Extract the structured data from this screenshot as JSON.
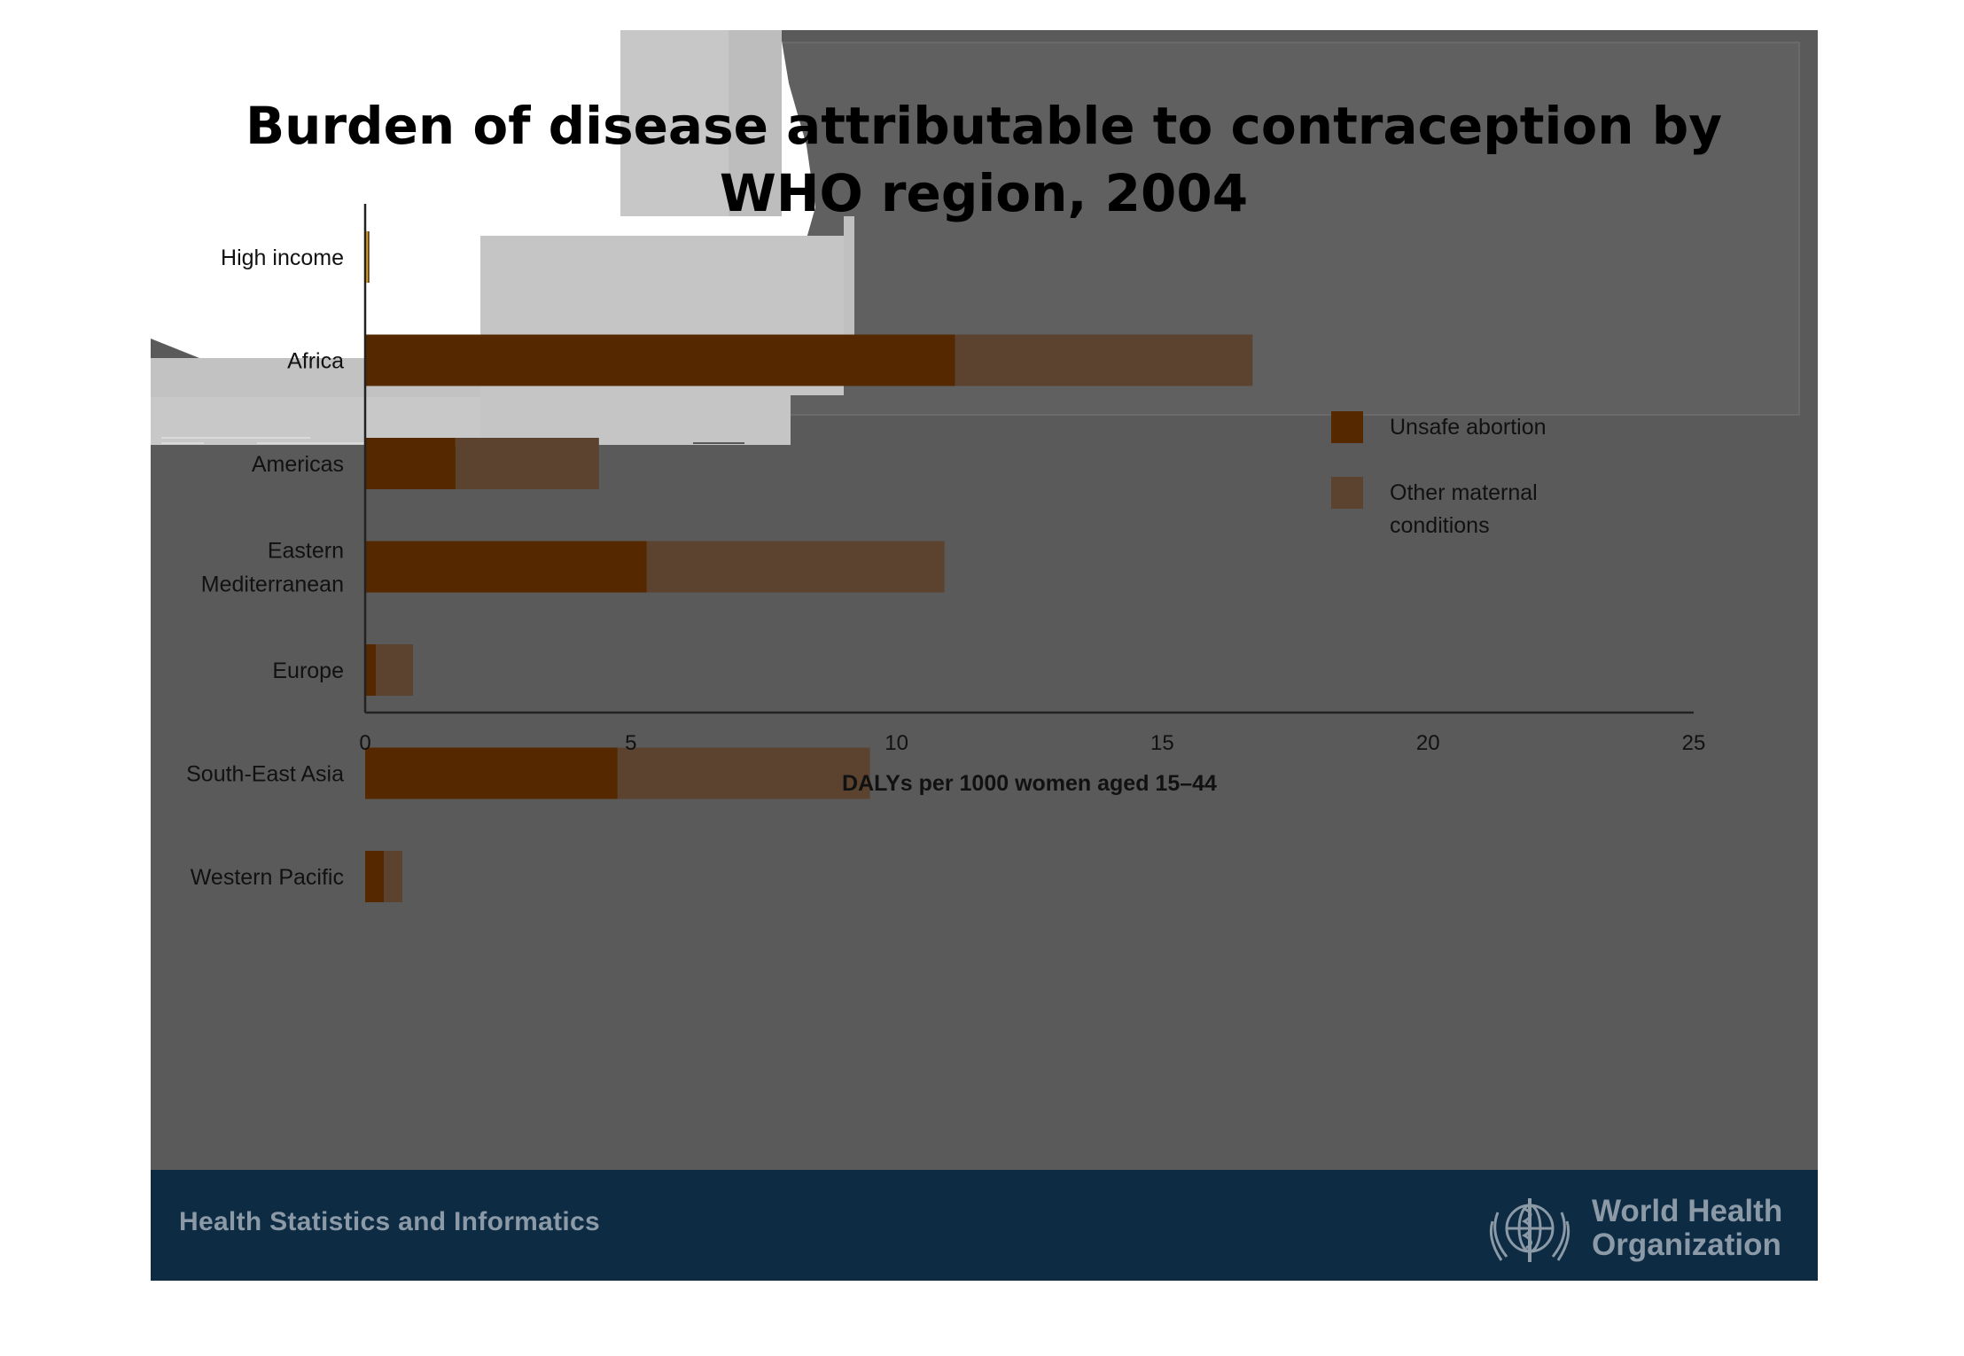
{
  "title": "Burden of disease attributable to contraception by WHO region, 2004",
  "footer": {
    "left_text": "Health Statistics and Informatics",
    "org_line1": "World Health",
    "org_line2": "Organization",
    "logo_icon": "who-emblem-icon"
  },
  "colors": {
    "slide_background": "#5a5a5a",
    "footer_background": "#0d2b43",
    "unsafe_abortion": "#552800",
    "other_maternal": "#5b4330",
    "footer_text": "#8b9aa6"
  },
  "chart_data": {
    "type": "bar",
    "orientation": "horizontal",
    "stacked": true,
    "categories": [
      [
        "High income"
      ],
      [
        "Africa"
      ],
      [
        "Americas"
      ],
      [
        "Eastern",
        "Mediterranean"
      ],
      [
        "Europe"
      ],
      [
        "South-East Asia"
      ],
      [
        "Western Pacific"
      ]
    ],
    "series": [
      {
        "name": "Unsafe abortion",
        "color": "#552800",
        "values": [
          0.05,
          11.1,
          1.7,
          5.3,
          0.2,
          4.75,
          0.35
        ]
      },
      {
        "name": "Other maternal conditions",
        "color": "#5b4330",
        "values": [
          0.03,
          5.6,
          2.7,
          5.6,
          0.7,
          4.75,
          0.35
        ]
      }
    ],
    "legend": {
      "position": "right",
      "entries": [
        [
          "Unsafe abortion"
        ],
        [
          "Other maternal",
          "conditions"
        ]
      ]
    },
    "xlabel": "DALYs per 1000 women aged 15–44",
    "ylabel": "",
    "xlim": [
      0,
      25
    ],
    "xticks": [
      0,
      5,
      10,
      15,
      20,
      25
    ],
    "grid": false
  }
}
